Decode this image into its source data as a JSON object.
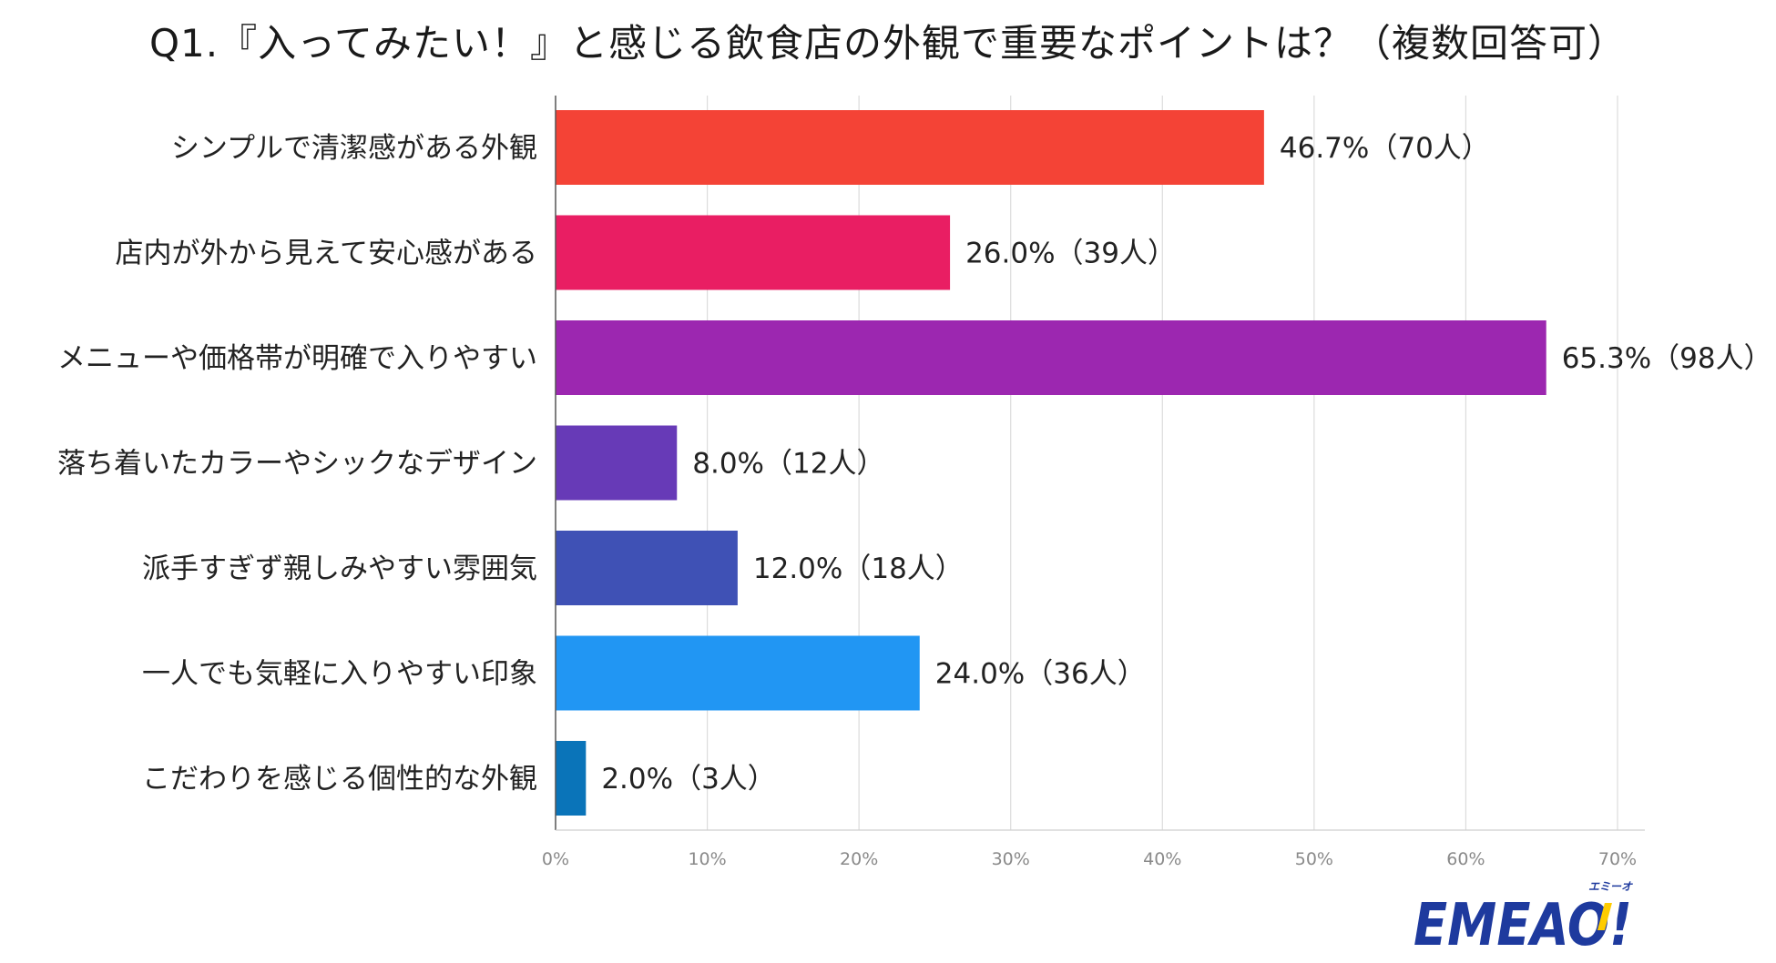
{
  "chart_data": {
    "type": "bar",
    "orientation": "horizontal",
    "title": "Q1.『入ってみたい！』と感じる飲食店の外観で重要なポイントは？（複数回答可）",
    "xlabel": "",
    "ylabel": "",
    "xlim": [
      0,
      70
    ],
    "x_ticks": [
      "0%",
      "10%",
      "20%",
      "30%",
      "40%",
      "50%",
      "60%",
      "70%"
    ],
    "grid": true,
    "legend": "none",
    "categories": [
      "シンプルで清潔感がある外観",
      "店内が外から見えて安心感がある",
      "メニューや価格帯が明確で入りやすい",
      "落ち着いたカラーやシックなデザイン",
      "派手すぎず親しみやすい雰囲気",
      "一人でも気軽に入りやすい印象",
      "こだわりを感じる個性的な外観"
    ],
    "values": [
      46.7,
      26.0,
      65.3,
      8.0,
      12.0,
      24.0,
      2.0
    ],
    "data_labels": [
      "46.7%（70人）",
      "26.0%（39人）",
      "65.3%（98人）",
      "8.0%（12人）",
      "12.0%（18人）",
      "24.0%（36人）",
      "2.0%（3人）"
    ],
    "colors": [
      "#f44336",
      "#e91e63",
      "#9c27b0",
      "#673ab7",
      "#3f51b5",
      "#2196f3",
      "#0a74b9"
    ]
  },
  "logo": {
    "text": "EMEAO!",
    "ruby": "エミーオ",
    "color": "#1e3a9e",
    "accent": "#ffcc00"
  }
}
